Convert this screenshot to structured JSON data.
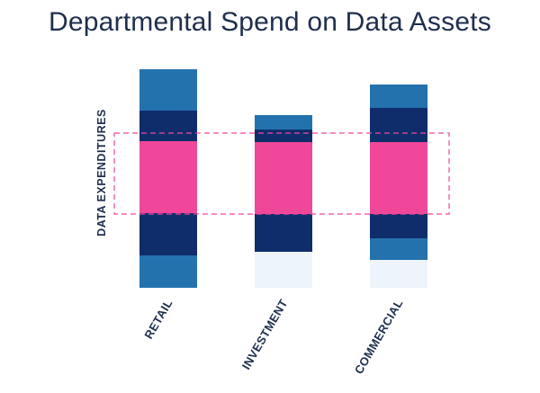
{
  "title": "Departmental Spend on Data Assets",
  "chart_data": {
    "type": "bar",
    "stacked": true,
    "title": "Departmental Spend on Data Assets",
    "ylabel": "DATA EXPENDITURES",
    "xlabel": "",
    "categories": [
      "RETAIL",
      "INVESTMENT",
      "COMMERCIAL"
    ],
    "ylim": [
      0,
      245
    ],
    "grid": false,
    "series": [
      {
        "color": "#eef4fb",
        "values": [
          0,
          40,
          31
        ]
      },
      {
        "color": "#2372ae",
        "values": [
          36,
          0,
          24
        ]
      },
      {
        "color": "#0f2d6b",
        "values": [
          47,
          42,
          27
        ]
      },
      {
        "color": "#f0479b",
        "values": [
          80,
          80,
          80
        ]
      },
      {
        "color": "#0f2d6b",
        "values": [
          34,
          14,
          38
        ]
      },
      {
        "color": "#2372ae",
        "values": [
          46,
          16,
          26
        ]
      }
    ],
    "highlight_band": {
      "from": 82,
      "to": 172,
      "color": "#f0479b",
      "style": "dashed"
    }
  }
}
